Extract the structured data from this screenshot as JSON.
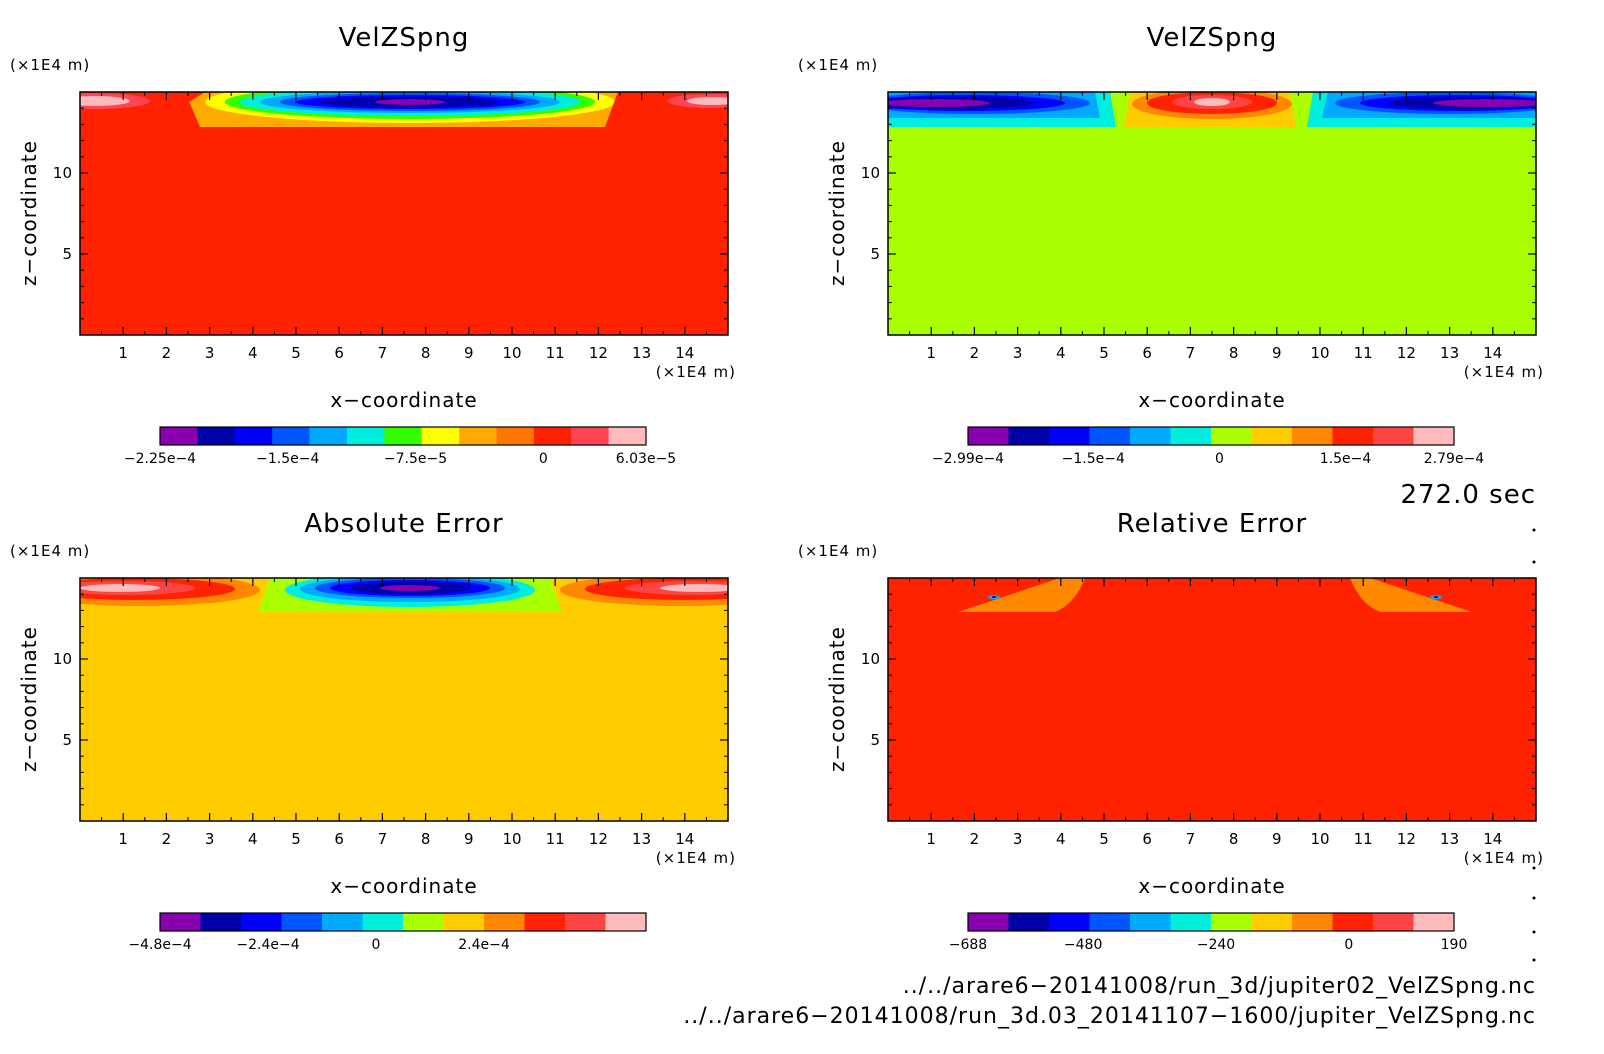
{
  "chart_data": [
    {
      "type": "heatmap",
      "title": "VelZSpng",
      "xlabel": "x−coordinate",
      "ylabel": "z−coordinate",
      "x_unit": "(×1E4 m)",
      "y_unit": "(×1E4 m)",
      "xlim": [
        0,
        15
      ],
      "zlim": [
        0,
        15
      ],
      "xticks": [
        "1",
        "2",
        "3",
        "4",
        "5",
        "6",
        "7",
        "8",
        "9",
        "10",
        "11",
        "12",
        "13",
        "14"
      ],
      "zticks": [
        "5",
        "10"
      ],
      "background_color": "#ff2200",
      "colorbar": {
        "colors": [
          "#8800b0",
          "#0000a8",
          "#0000ff",
          "#0055ff",
          "#00aaff",
          "#00eedd",
          "#33ff00",
          "#ffff00",
          "#ffaa00",
          "#ff7700",
          "#ff2200",
          "#ff4455",
          "#ffbbbb"
        ],
        "labels": [
          "−2.25e−4",
          "−1.5e−4",
          "−7.5e−5",
          "0",
          "6.03e−5"
        ],
        "label_values": [
          -0.000225,
          -0.00015,
          -7.5e-05,
          0,
          6.03e-05
        ],
        "range": [
          -0.000225,
          6.03e-05
        ]
      }
    },
    {
      "type": "heatmap",
      "title": "VelZSpng",
      "xlabel": "x−coordinate",
      "ylabel": "z−coordinate",
      "x_unit": "(×1E4 m)",
      "y_unit": "(×1E4 m)",
      "xlim": [
        0,
        15
      ],
      "zlim": [
        0,
        15
      ],
      "xticks": [
        "1",
        "2",
        "3",
        "4",
        "5",
        "6",
        "7",
        "8",
        "9",
        "10",
        "11",
        "12",
        "13",
        "14"
      ],
      "zticks": [
        "5",
        "10"
      ],
      "background_color": "#aaff00",
      "colorbar": {
        "colors": [
          "#8800b0",
          "#0000a8",
          "#0000ff",
          "#0055ff",
          "#00aaff",
          "#00eedd",
          "#aaff00",
          "#ffcc00",
          "#ff8800",
          "#ff2200",
          "#ff4444",
          "#ffbbbb"
        ],
        "labels": [
          "−2.99e−4",
          "−1.5e−4",
          "0",
          "1.5e−4",
          "2.79e−4"
        ],
        "label_values": [
          -0.000299,
          -0.00015,
          0,
          0.00015,
          0.000279
        ],
        "range": [
          -0.000299,
          0.000279
        ]
      }
    },
    {
      "type": "heatmap",
      "title": "Absolute Error",
      "xlabel": "x−coordinate",
      "ylabel": "z−coordinate",
      "x_unit": "(×1E4 m)",
      "y_unit": "(×1E4 m)",
      "xlim": [
        0,
        15
      ],
      "zlim": [
        0,
        15
      ],
      "xticks": [
        "1",
        "2",
        "3",
        "4",
        "5",
        "6",
        "7",
        "8",
        "9",
        "10",
        "11",
        "12",
        "13",
        "14"
      ],
      "zticks": [
        "5",
        "10"
      ],
      "background_color": "#ffcc00",
      "colorbar": {
        "colors": [
          "#8800b0",
          "#0000a8",
          "#0000ff",
          "#0055ff",
          "#00aaff",
          "#00eedd",
          "#aaff00",
          "#ffcc00",
          "#ff8800",
          "#ff2200",
          "#ff4444",
          "#ffbbbb"
        ],
        "labels": [
          "−4.8e−4",
          "−2.4e−4",
          "0",
          "2.4e−4"
        ],
        "label_values": [
          -0.00048,
          -0.00024,
          0,
          0.00024
        ],
        "range": [
          -0.00048,
          0.0006
        ]
      }
    },
    {
      "type": "heatmap",
      "title": "Relative Error",
      "xlabel": "x−coordinate",
      "ylabel": "z−coordinate",
      "x_unit": "(×1E4 m)",
      "y_unit": "(×1E4 m)",
      "xlim": [
        0,
        15
      ],
      "zlim": [
        0,
        15
      ],
      "xticks": [
        "1",
        "2",
        "3",
        "4",
        "5",
        "6",
        "7",
        "8",
        "9",
        "10",
        "11",
        "12",
        "13",
        "14"
      ],
      "zticks": [
        "5",
        "10"
      ],
      "background_color": "#ff2200",
      "colorbar": {
        "colors": [
          "#8800b0",
          "#0000a8",
          "#0000ff",
          "#0055ff",
          "#00aaff",
          "#00eedd",
          "#aaff00",
          "#ffcc00",
          "#ff8800",
          "#ff2200",
          "#ff4444",
          "#ffbbbb"
        ],
        "labels": [
          "−688",
          "−480",
          "−240",
          "0",
          "190"
        ],
        "label_values": [
          -688,
          -480,
          -240,
          0,
          190
        ],
        "range": [
          -688,
          190
        ]
      }
    }
  ],
  "time_label": "272.0 sec",
  "footer": {
    "file1": "../../arare6−20141008/run_3d/jupiter02_VelZSpng.nc",
    "file2": "../../arare6−20141008/run_3d.03_20141107−1600/jupiter_VelZSpng.nc"
  }
}
